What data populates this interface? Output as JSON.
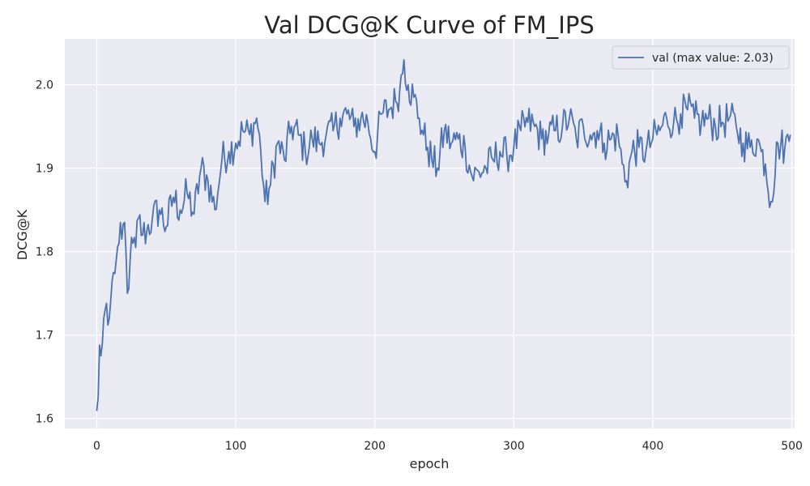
{
  "chart_data": {
    "type": "line",
    "title": "Val DCG@K Curve of FM_IPS",
    "xlabel": "epoch",
    "ylabel": "DCG@K",
    "xlim": [
      -23,
      502
    ],
    "ylim": [
      1.588,
      2.055
    ],
    "xticks": [
      0,
      100,
      200,
      300,
      400,
      500
    ],
    "yticks": [
      1.6,
      1.7,
      1.8,
      1.9,
      2.0
    ],
    "xtick_labels": [
      "0",
      "100",
      "200",
      "300",
      "400",
      "500"
    ],
    "ytick_labels": [
      "1.6",
      "1.7",
      "1.8",
      "1.9",
      "2.0"
    ],
    "grid": true,
    "legend_position": "top-right",
    "colors": {
      "plot_bg": "#eaeaf2",
      "grid": "#ffffff",
      "line": "#4c72b0",
      "text": "#262626"
    },
    "series": [
      {
        "name": "val (max value: 2.03)",
        "anchor_x": [
          0,
          1,
          2,
          3,
          4,
          5,
          6,
          7,
          8,
          9,
          10,
          12,
          14,
          16,
          18,
          20,
          22,
          24,
          26,
          28,
          30,
          33,
          36,
          40,
          45,
          50,
          55,
          60,
          65,
          70,
          75,
          80,
          85,
          90,
          95,
          100,
          105,
          110,
          115,
          118,
          121,
          125,
          130,
          135,
          140,
          145,
          150,
          155,
          160,
          165,
          170,
          175,
          180,
          185,
          190,
          195,
          200,
          205,
          210,
          215,
          218,
          221,
          224,
          228,
          232,
          235,
          238,
          241,
          245,
          250,
          255,
          260,
          265,
          270,
          275,
          280,
          285,
          290,
          295,
          300,
          305,
          310,
          315,
          320,
          325,
          330,
          335,
          340,
          345,
          350,
          355,
          360,
          365,
          370,
          375,
          378,
          381,
          385,
          390,
          395,
          400,
          405,
          410,
          415,
          420,
          425,
          430,
          435,
          440,
          445,
          450,
          455,
          460,
          465,
          470,
          475,
          478,
          481,
          485,
          490,
          495,
          499
        ],
        "anchor_y": [
          1.609,
          1.625,
          1.688,
          1.675,
          1.69,
          1.72,
          1.73,
          1.738,
          1.712,
          1.72,
          1.74,
          1.775,
          1.79,
          1.81,
          1.815,
          1.835,
          1.75,
          1.79,
          1.81,
          1.805,
          1.84,
          1.82,
          1.825,
          1.84,
          1.85,
          1.83,
          1.865,
          1.85,
          1.87,
          1.845,
          1.9,
          1.885,
          1.85,
          1.91,
          1.92,
          1.93,
          1.945,
          1.94,
          1.96,
          1.92,
          1.86,
          1.88,
          1.93,
          1.91,
          1.95,
          1.94,
          1.92,
          1.935,
          1.93,
          1.94,
          1.945,
          1.96,
          1.965,
          1.95,
          1.96,
          1.955,
          1.92,
          1.965,
          1.97,
          1.98,
          1.995,
          2.03,
          2.0,
          1.985,
          1.96,
          1.94,
          1.925,
          1.91,
          1.9,
          1.945,
          1.93,
          1.935,
          1.925,
          1.89,
          1.895,
          1.9,
          1.91,
          1.92,
          1.915,
          1.925,
          1.945,
          1.955,
          1.95,
          1.935,
          1.94,
          1.945,
          1.95,
          1.96,
          1.935,
          1.95,
          1.94,
          1.945,
          1.93,
          1.935,
          1.94,
          1.905,
          1.885,
          1.92,
          1.925,
          1.92,
          1.935,
          1.945,
          1.96,
          1.955,
          1.965,
          1.97,
          1.96,
          1.955,
          1.96,
          1.95,
          1.955,
          1.96,
          1.95,
          1.93,
          1.925,
          1.935,
          1.92,
          1.905,
          1.86,
          1.93,
          1.925,
          1.94
        ]
      }
    ]
  }
}
